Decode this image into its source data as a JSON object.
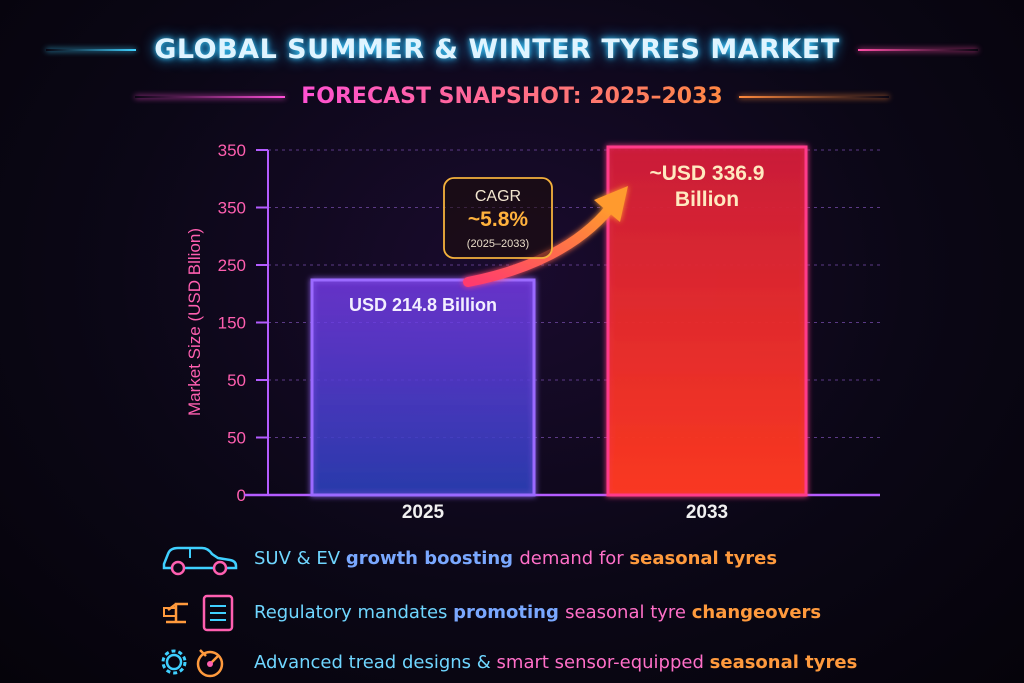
{
  "title": "GLOBAL SUMMER & WINTER TYRES MARKET",
  "subtitle": "FORECAST SNAPSHOT: 2025–2033",
  "colors": {
    "bar_2025": "#6a3cff",
    "bar_2033": "#ff2a5a",
    "axis": "#b45cff",
    "cyan": "#3fd0ff",
    "orange": "#ff9a3d"
  },
  "chart_data": {
    "type": "bar",
    "categories": [
      "2025",
      "2033"
    ],
    "values": [
      214.8,
      336.9
    ],
    "ylabel": "Market Size (USD Bllion)",
    "ylim": [
      0,
      350
    ],
    "y_tick_labels": [
      "0",
      "50",
      "50",
      "150",
      "250",
      "350",
      "350"
    ],
    "grid": true,
    "data_labels": [
      [
        "USD 214.8 Billion"
      ],
      [
        "~USD 336.9",
        "Billion"
      ]
    ],
    "annotation": {
      "label": "CAGR",
      "value": "~5.8%",
      "period": "(2025–2033)"
    }
  },
  "features": [
    {
      "icon": "suv-car-icon",
      "parts": [
        {
          "text": "SUV & EV ",
          "style": "c-cyan"
        },
        {
          "text": "growth boosting ",
          "style": "c-blue"
        },
        {
          "text": "demand for ",
          "style": "c-pink"
        },
        {
          "text": "seasonal tyres",
          "style": "c-orange"
        }
      ]
    },
    {
      "icon": "regulation-document-icon",
      "parts": [
        {
          "text": "Regulatory mandates ",
          "style": "c-cyan"
        },
        {
          "text": "promoting ",
          "style": "c-blue"
        },
        {
          "text": "seasonal tyre ",
          "style": "c-pink"
        },
        {
          "text": "changeovers",
          "style": "c-orange"
        }
      ]
    },
    {
      "icon": "gear-sensor-icon",
      "parts": [
        {
          "text": "Advanced tread designs & ",
          "style": "c-cyan"
        },
        {
          "text": "smart sensor-equipped ",
          "style": "c-pink"
        },
        {
          "text": "seasonal tyres",
          "style": "c-orange"
        }
      ]
    }
  ]
}
